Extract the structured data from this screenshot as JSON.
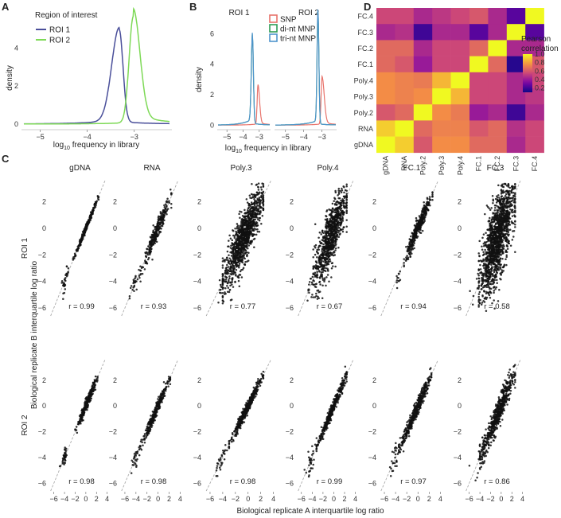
{
  "chart_data": [
    {
      "panel": "A",
      "type": "line",
      "xlabel": "log10 frequency in library",
      "ylabel": "density",
      "xlim": [
        -5.4,
        -2.2
      ],
      "ylim": [
        -0.3,
        6.2
      ],
      "xticks": [
        -5,
        -4,
        -3
      ],
      "xtick_labels": [
        "−5",
        "−4",
        "−3"
      ],
      "yticks": [
        0,
        2,
        4
      ],
      "legend_title": "Region of interest",
      "legend_position": "top-left",
      "series": [
        {
          "name": "ROI 1",
          "color": "#4a4f9a",
          "peak_x": -3.32,
          "peak_y": 4.85,
          "width_left": 0.16,
          "width_right": 0.08,
          "tail_left": 0.06,
          "tail_right": 0.03
        },
        {
          "name": "ROI 2",
          "color": "#7ed957",
          "peak_x": -3.02,
          "peak_y": 5.6,
          "width_left": 0.09,
          "width_right": 0.14,
          "tail_left": 0.02,
          "tail_right": 0.12
        }
      ]
    },
    {
      "panel": "B",
      "type": "line",
      "xlabel": "log10 frequency in library",
      "ylabel": "density",
      "ylim": [
        -0.3,
        7.8
      ],
      "yticks": [
        0,
        2,
        4,
        6
      ],
      "facets": [
        "ROI 1",
        "ROI 2"
      ],
      "facet_xlim": [
        [
          -5.6,
          -2.3
        ],
        [
          -5.6,
          -2.2
        ]
      ],
      "facet_xticks": [
        [
          -5,
          -4,
          -3
        ],
        [
          -5,
          -4,
          -3
        ]
      ],
      "facet_xtick_labels": [
        [
          "−5",
          "−4",
          "−3"
        ],
        [
          "−5",
          "−4",
          "−3"
        ]
      ],
      "legend_position": "top-center",
      "series_names": [
        "SNP",
        "di-nt MNP",
        "tri-nt MNP"
      ],
      "series_colors": [
        "#e8736b",
        "#2e9d55",
        "#4f94cd"
      ],
      "facet_series": [
        [
          {
            "peak_x": -3.08,
            "peak_y": 2.5,
            "width_left": 0.05,
            "width_right": 0.1,
            "tail_left": 0.02,
            "tail_right": 0.04
          },
          {
            "peak_x": -3.42,
            "peak_y": 5.6,
            "width_left": 0.07,
            "width_right": 0.06,
            "tail_left": 0.1,
            "tail_right": 0.03
          },
          {
            "peak_x": -3.42,
            "peak_y": 5.7,
            "width_left": 0.07,
            "width_right": 0.06,
            "tail_left": 0.1,
            "tail_right": 0.03
          }
        ],
        [
          {
            "peak_x": -3.0,
            "peak_y": 3.0,
            "width_left": 0.05,
            "width_right": 0.12,
            "tail_left": 0.02,
            "tail_right": 0.05
          },
          {
            "peak_x": -3.22,
            "peak_y": 7.3,
            "width_left": 0.05,
            "width_right": 0.05,
            "tail_left": 0.08,
            "tail_right": 0.02
          },
          {
            "peak_x": -3.22,
            "peak_y": 7.4,
            "width_left": 0.05,
            "width_right": 0.05,
            "tail_left": 0.08,
            "tail_right": 0.02
          }
        ]
      ]
    },
    {
      "panel": "D",
      "type": "heatmap",
      "x_labels": [
        "gDNA",
        "RNA",
        "Poly.2",
        "Poly.3",
        "Poly.4",
        "FC.1",
        "FC.2",
        "FC.3",
        "FC.4"
      ],
      "y_labels": [
        "FC.4",
        "FC.3",
        "FC.2",
        "FC.1",
        "Poly.4",
        "Poly.3",
        "Poly.2",
        "RNA",
        "gDNA"
      ],
      "values": [
        [
          0.55,
          0.55,
          0.45,
          0.5,
          0.55,
          0.6,
          0.45,
          0.25,
          1.0
        ],
        [
          0.45,
          0.48,
          0.2,
          0.45,
          0.45,
          0.25,
          0.45,
          1.0,
          0.25
        ],
        [
          0.65,
          0.65,
          0.45,
          0.55,
          0.55,
          0.65,
          1.0,
          0.45,
          0.45
        ],
        [
          0.65,
          0.6,
          0.4,
          0.55,
          0.55,
          1.0,
          0.65,
          0.15,
          0.6
        ],
        [
          0.75,
          0.72,
          0.7,
          0.85,
          1.0,
          0.55,
          0.55,
          0.45,
          0.55
        ],
        [
          0.75,
          0.72,
          0.75,
          1.0,
          0.85,
          0.55,
          0.55,
          0.45,
          0.5
        ],
        [
          0.6,
          0.65,
          1.0,
          0.75,
          0.7,
          0.4,
          0.45,
          0.2,
          0.45
        ],
        [
          0.9,
          1.0,
          0.65,
          0.72,
          0.72,
          0.6,
          0.65,
          0.48,
          0.55
        ],
        [
          1.0,
          0.9,
          0.6,
          0.75,
          0.75,
          0.65,
          0.65,
          0.45,
          0.55
        ]
      ],
      "legend_title_lines": [
        "Pearson",
        "correlation"
      ],
      "legend_ticks": [
        1.0,
        0.8,
        0.6,
        0.4,
        0.2
      ],
      "legend_tick_labels": [
        "1.0",
        "0.8",
        "0.6",
        "0.4",
        "0.2"
      ],
      "vmin": 0.1,
      "vmax": 1.0
    },
    {
      "panel": "C",
      "type": "scatter",
      "xlabel": "Biological replicate A interquartile log ratio",
      "ylabel": "Biological replicate B interquartile log ratio",
      "xlim": [
        -7,
        4.8
      ],
      "ylim": [
        -6.6,
        3.6
      ],
      "xticks": [
        -6,
        -4,
        -2,
        0,
        2,
        4
      ],
      "xtick_labels": [
        "−6",
        "−4",
        "−2",
        "0",
        "2",
        "4"
      ],
      "yticks": [
        -6,
        -4,
        -2,
        0,
        2
      ],
      "ytick_labels": [
        "−6",
        "−4",
        "−2",
        "0",
        "2"
      ],
      "reference_line": "y = x (dashed)",
      "columns": [
        "gDNA",
        "RNA",
        "Poly.3",
        "Poly.4",
        "FC.1",
        "FC.3"
      ],
      "rows": [
        "ROI 1",
        "ROI 2"
      ],
      "r_values": [
        [
          "r = 0.99",
          "r = 0.93",
          "r = 0.77",
          "r = 0.67",
          "r = 0.94",
          "r = 0.58"
        ],
        [
          "r = 0.98",
          "r = 0.98",
          "r = 0.98",
          "r = 0.99",
          "r = 0.97",
          "r = 0.86"
        ]
      ],
      "point_clouds": [
        [
          {
            "n": 260,
            "sd_main": 0.55,
            "sd_noise": 0.12,
            "slope": 1.0,
            "x_lo": -1.8,
            "x_hi": 2.0,
            "n_low": 30,
            "low_center": -3.9,
            "low_sd": 0.35
          },
          {
            "n": 300,
            "sd_main": 0.65,
            "sd_noise": 0.33,
            "slope": 1.0,
            "x_lo": -2.6,
            "x_hi": 2.0,
            "n_low": 25,
            "low_center": -4.2,
            "low_sd": 0.45
          },
          {
            "n": 1100,
            "sd_main": 0.85,
            "sd_noise": 0.95,
            "slope": 1.0,
            "x_lo": -3.4,
            "x_hi": 2.0,
            "n_low": 20,
            "low_center": -4.0,
            "low_sd": 0.6
          },
          {
            "n": 850,
            "sd_main": 0.75,
            "sd_noise": 1.05,
            "slope": 1.0,
            "x_lo": -3.2,
            "x_hi": 2.0,
            "n_low": 25,
            "low_center": -4.0,
            "low_sd": 0.6
          },
          {
            "n": 380,
            "sd_main": 0.7,
            "sd_noise": 0.33,
            "slope": 1.0,
            "x_lo": -1.9,
            "x_hi": 2.2,
            "n_low": 12,
            "low_center": -3.6,
            "low_sd": 0.5
          },
          {
            "n": 1500,
            "sd_main": 0.95,
            "sd_noise": 1.45,
            "slope": 1.0,
            "x_lo": -3.6,
            "x_hi": 2.2,
            "n_low": 10,
            "low_center": -4.2,
            "low_sd": 0.8
          }
        ],
        [
          {
            "n": 260,
            "sd_main": 0.6,
            "sd_noise": 0.22,
            "slope": 1.0,
            "x_lo": -1.4,
            "x_hi": 1.8,
            "n_low": 35,
            "low_center": -4.0,
            "low_sd": 0.3
          },
          {
            "n": 300,
            "sd_main": 0.65,
            "sd_noise": 0.24,
            "slope": 1.0,
            "x_lo": -2.6,
            "x_hi": 1.8,
            "n_low": 28,
            "low_center": -4.0,
            "low_sd": 0.45
          },
          {
            "n": 420,
            "sd_main": 0.7,
            "sd_noise": 0.22,
            "slope": 1.0,
            "x_lo": -2.4,
            "x_hi": 2.0,
            "n_low": 28,
            "low_center": -4.2,
            "low_sd": 0.45
          },
          {
            "n": 420,
            "sd_main": 0.75,
            "sd_noise": 0.22,
            "slope": 1.0,
            "x_lo": -2.6,
            "x_hi": 2.0,
            "n_low": 32,
            "low_center": -4.2,
            "low_sd": 0.5
          },
          {
            "n": 420,
            "sd_main": 0.75,
            "sd_noise": 0.3,
            "slope": 1.0,
            "x_lo": -2.8,
            "x_hi": 2.0,
            "n_low": 30,
            "low_center": -4.0,
            "low_sd": 0.6
          },
          {
            "n": 550,
            "sd_main": 0.7,
            "sd_noise": 0.55,
            "slope": 1.0,
            "x_lo": -3.4,
            "x_hi": 2.2,
            "n_low": 25,
            "low_center": -3.6,
            "low_sd": 0.7
          }
        ]
      ]
    }
  ]
}
